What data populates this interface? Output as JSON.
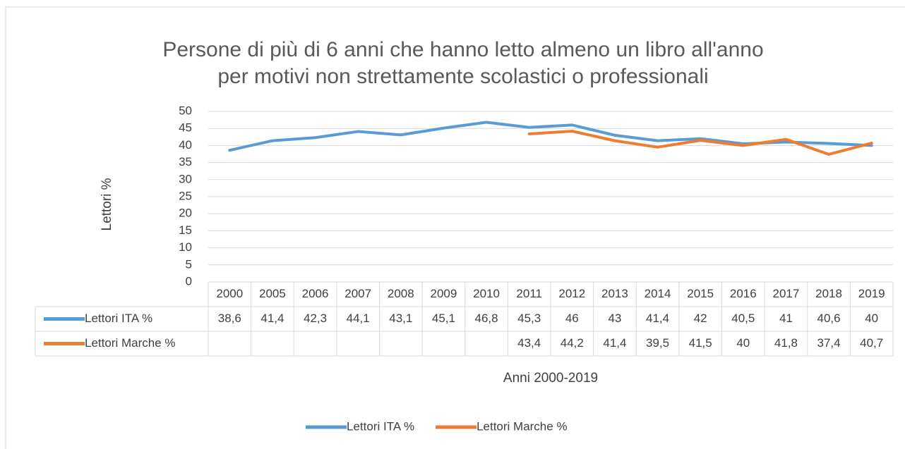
{
  "chart_data": {
    "type": "line",
    "title": [
      "Persone di più di 6 anni che hanno letto almeno un libro all'anno",
      "per motivi non strettamente scolastici o professionali"
    ],
    "y_label": "Lettori %",
    "x_label": "Anni 2000-2019",
    "categories": [
      "2000",
      "2005",
      "2006",
      "2007",
      "2008",
      "2009",
      "2010",
      "2011",
      "2012",
      "2013",
      "2014",
      "2015",
      "2016",
      "2017",
      "2018",
      "2019"
    ],
    "series": [
      {
        "name": "Lettori ITA %",
        "color": "#5b9bd5",
        "values": [
          38.6,
          41.4,
          42.3,
          44.1,
          43.1,
          45.1,
          46.8,
          45.3,
          46,
          43,
          41.4,
          42,
          40.5,
          41,
          40.6,
          40
        ],
        "value_labels": [
          "38,6",
          "41,4",
          "42,3",
          "44,1",
          "43,1",
          "45,1",
          "46,8",
          "45,3",
          "46",
          "43",
          "41,4",
          "42",
          "40,5",
          "41",
          "40,6",
          "40"
        ]
      },
      {
        "name": "Lettori Marche %",
        "color": "#ed7d31",
        "values": [
          null,
          null,
          null,
          null,
          null,
          null,
          null,
          43.4,
          44.2,
          41.4,
          39.5,
          41.5,
          40,
          41.8,
          37.4,
          40.7
        ],
        "value_labels": [
          null,
          null,
          null,
          null,
          null,
          null,
          null,
          "43,4",
          "44,2",
          "41,4",
          "39,5",
          "41,5",
          "40",
          "41,8",
          "37,4",
          "40,7"
        ]
      }
    ],
    "ylim": [
      0,
      50
    ],
    "yticks": [
      0,
      5,
      10,
      15,
      20,
      25,
      30,
      35,
      40,
      45,
      50
    ],
    "grid": true,
    "legend": "bottom",
    "data_table": true
  }
}
